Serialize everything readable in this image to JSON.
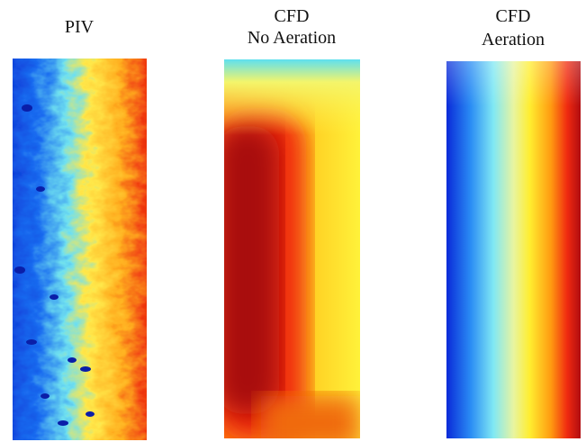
{
  "panels": [
    {
      "title_lines": [
        "PIV"
      ]
    },
    {
      "title_lines": [
        "CFD",
        "No Aeration"
      ]
    },
    {
      "title_lines": [
        "CFD",
        "Aeration"
      ]
    }
  ]
}
